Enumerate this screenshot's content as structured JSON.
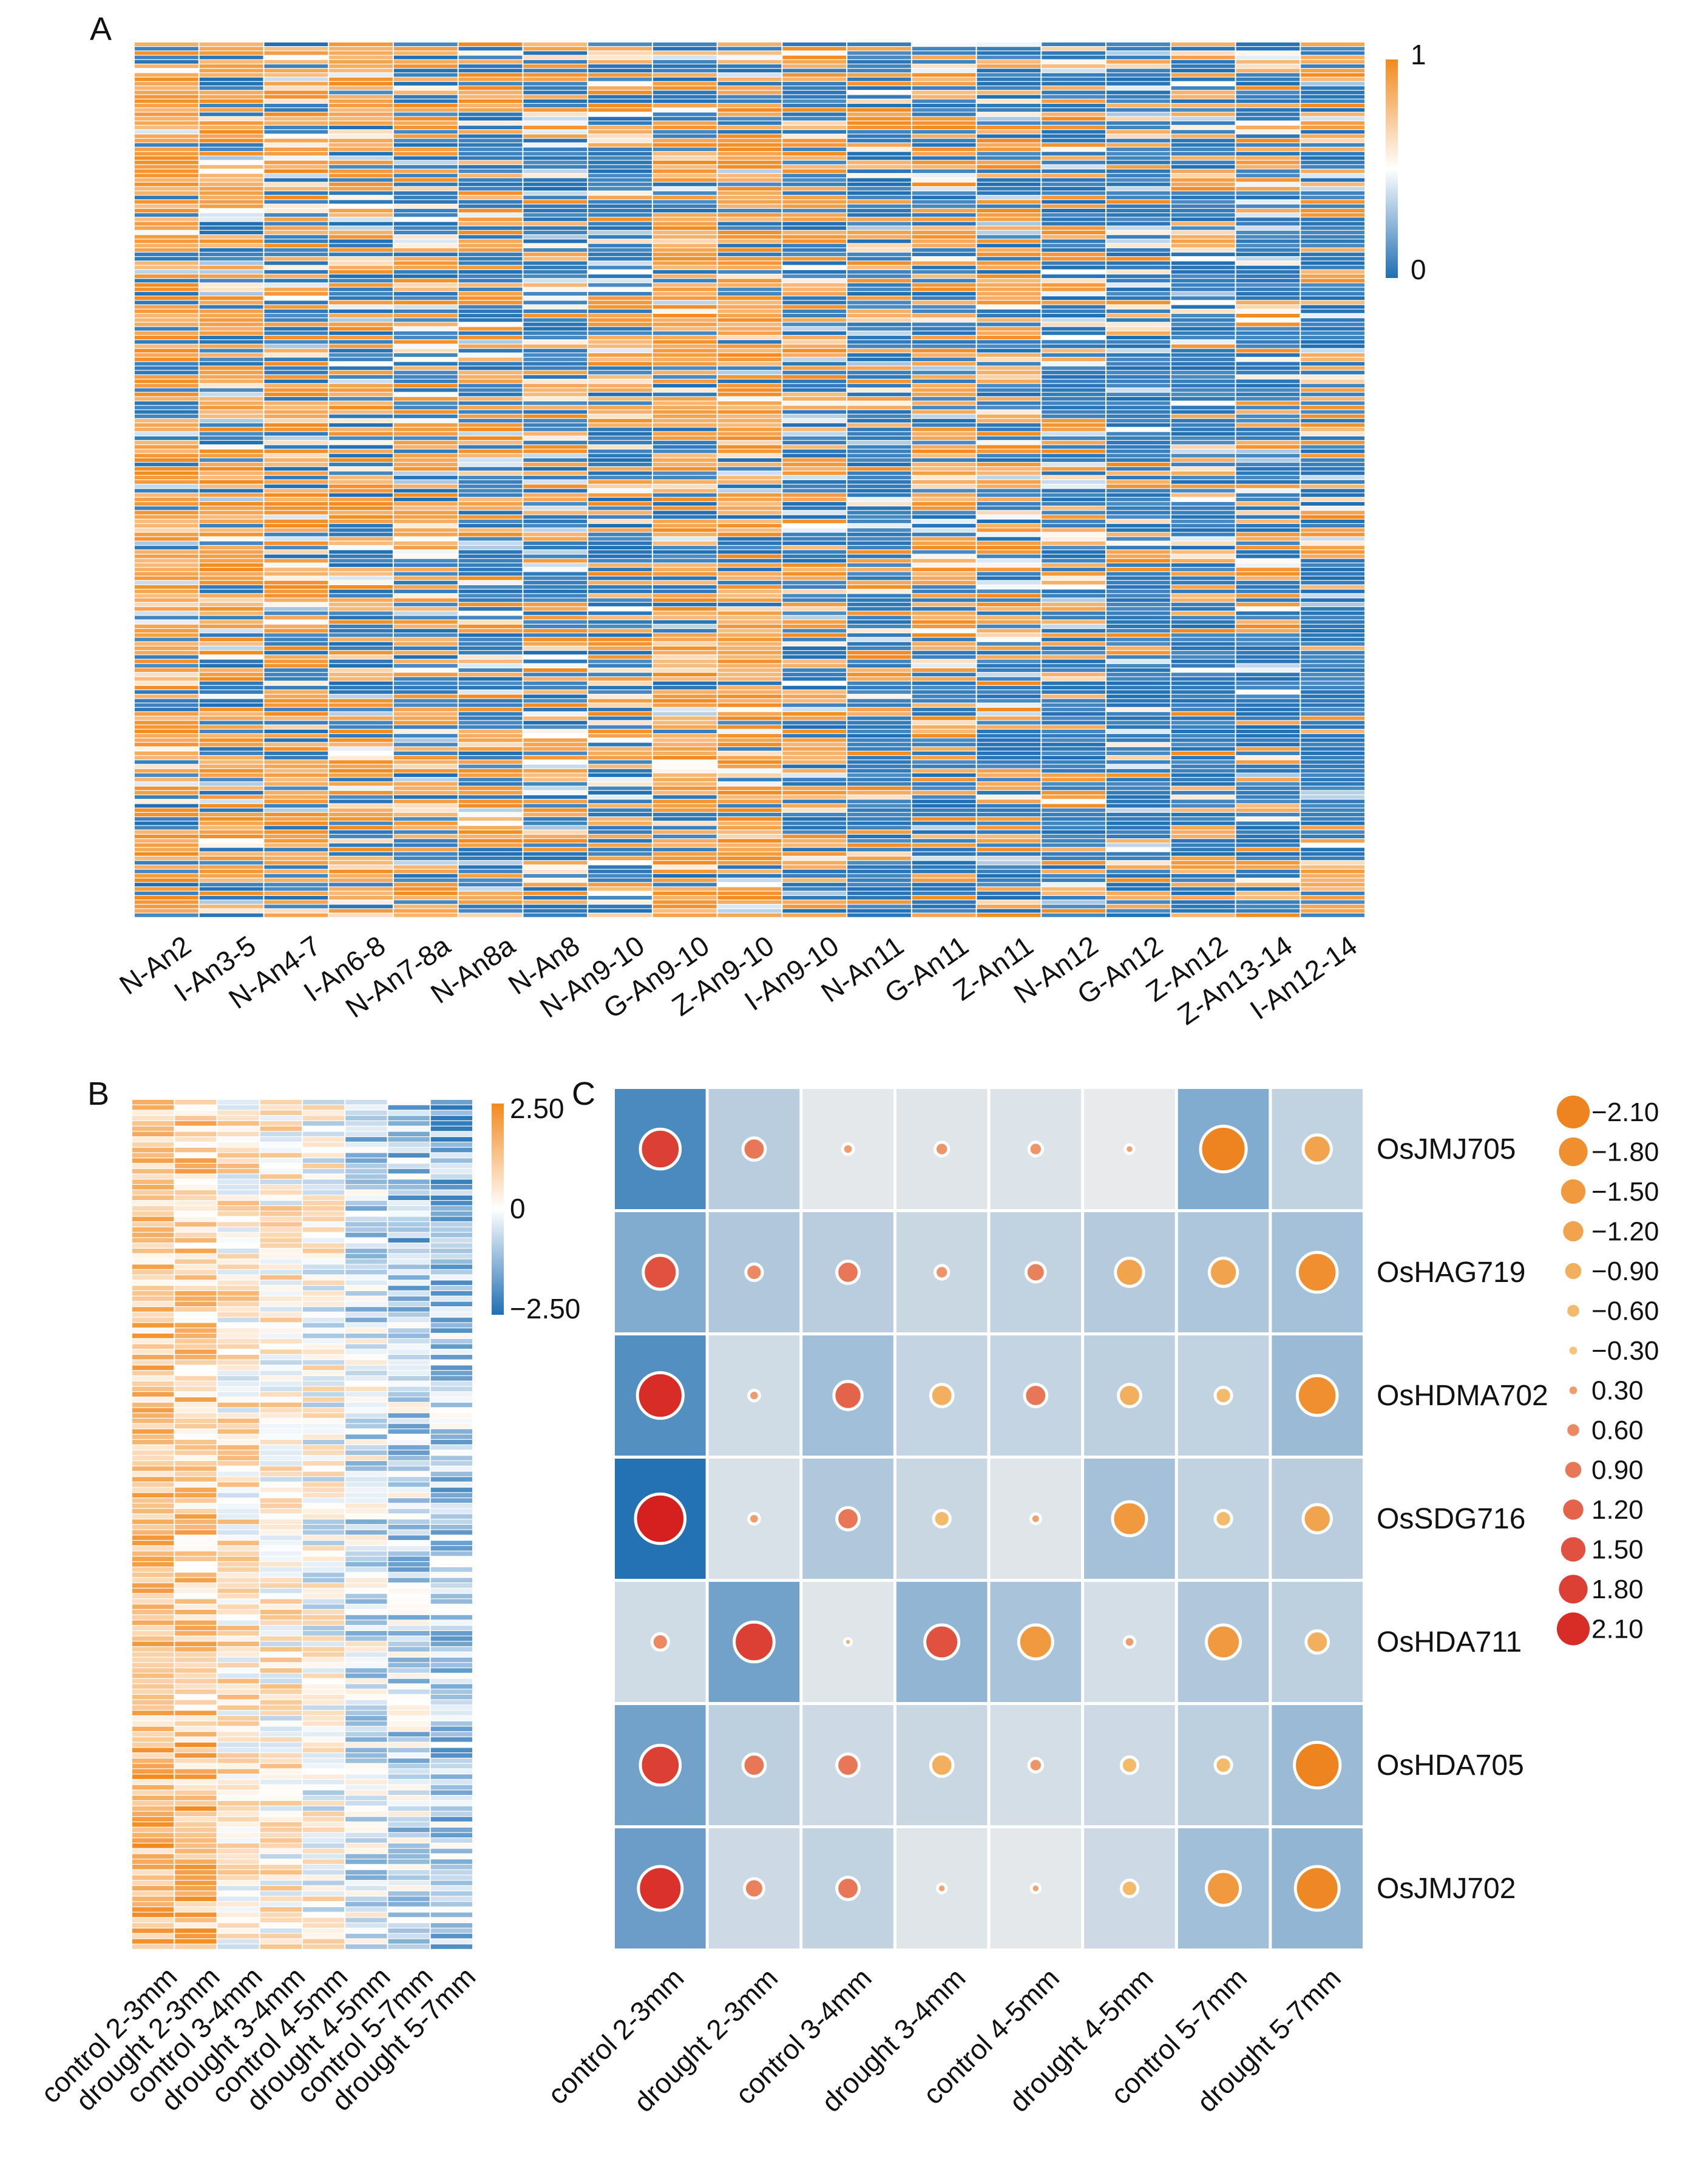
{
  "chart_data": [
    {
      "panel": "A",
      "type": "heatmap",
      "title": "",
      "columns": [
        "N-An2",
        "I-An3-5",
        "N-An4-7",
        "I-An6-8",
        "N-An7-8a",
        "N-An8a",
        "N-An8",
        "N-An9-10",
        "G-An9-10",
        "Z-An9-10",
        "I-An9-10",
        "N-An11",
        "G-An11",
        "Z-An11",
        "N-An12",
        "G-An12",
        "Z-An12",
        "Z-An13-14",
        "I-An12-14"
      ],
      "column_colors": [
        "#2e4a9a",
        "#e0533c",
        "#2e4a9a",
        "#e0533c",
        "#2e4a9a",
        "#2e4a9a",
        "#2e4a9a",
        "#2e4a9a",
        "#7ba7cf",
        "#f0a35a",
        "#e0533c",
        "#2e4a9a",
        "#7ba7cf",
        "#f0a35a",
        "#2e4a9a",
        "#7ba7cf",
        "#f0a35a",
        "#f0a35a",
        "#e0533c"
      ],
      "row_count": 200,
      "column_profile": [
        0.72,
        0.68,
        0.64,
        0.66,
        0.52,
        0.4,
        0.32,
        0.42,
        0.72,
        0.72,
        0.5,
        0.3,
        0.52,
        0.48,
        0.34,
        0.18,
        0.24,
        0.26,
        0.3
      ],
      "colorbar": {
        "min": 0,
        "max": 1,
        "tick_labels": [
          "1",
          "0"
        ],
        "low_color": "#1f6fb4",
        "mid_color": "#ffffff",
        "high_color": "#f28a1e"
      }
    },
    {
      "panel": "B",
      "type": "heatmap",
      "title": "",
      "columns": [
        "control 2-3mm",
        "drought 2-3mm",
        "control 3-4mm",
        "drought 3-4mm",
        "control 4-5mm",
        "drought 4-5mm",
        "control 5-7mm",
        "drought 5-7mm"
      ],
      "row_count": 160,
      "column_profile": [
        0.75,
        0.65,
        0.3,
        0.2,
        0.05,
        -0.25,
        -0.4,
        -0.55
      ],
      "colorbar": {
        "min": -2.5,
        "max": 2.5,
        "tick_labels": [
          "2.50",
          "0",
          "−2.50"
        ],
        "low_color": "#1f6fb4",
        "mid_color": "#ffffff",
        "high_color": "#f28a1e"
      }
    },
    {
      "panel": "C",
      "type": "heatmap",
      "title": "",
      "columns": [
        "control 2-3mm",
        "drought 2-3mm",
        "control 3-4mm",
        "drought 3-4mm",
        "control 4-5mm",
        "drought 4-5mm",
        "control 5-7mm",
        "drought 5-7mm"
      ],
      "rows": [
        "OsJMJ705",
        "OsHAG719",
        "OsHDMA702",
        "OsSDG716",
        "OsHDA711",
        "OsHDA705",
        "OsJMJ702"
      ],
      "tile_values": [
        [
          -2.0,
          -0.6,
          -0.05,
          -0.1,
          -0.15,
          0.0,
          -1.3,
          -0.5
        ],
        [
          -1.3,
          -0.7,
          -0.6,
          -0.4,
          -0.5,
          -0.65,
          -0.75,
          -0.85
        ],
        [
          -1.9,
          -0.3,
          -0.9,
          -0.45,
          -0.45,
          -0.55,
          -0.5,
          -1.0
        ],
        [
          -2.5,
          -0.2,
          -0.7,
          -0.4,
          -0.1,
          -0.85,
          -0.5,
          -0.6
        ],
        [
          -0.3,
          -1.5,
          -0.1,
          -1.1,
          -0.8,
          -0.25,
          -0.7,
          -0.55
        ],
        [
          -1.5,
          -0.55,
          -0.35,
          -0.4,
          -0.25,
          -0.35,
          -0.55,
          -1.0
        ],
        [
          -1.6,
          -0.35,
          -0.5,
          -0.1,
          -0.05,
          -0.35,
          -0.9,
          -1.1
        ]
      ],
      "dot_values": [
        [
          1.8,
          0.9,
          0.3,
          0.45,
          0.45,
          0.2,
          -2.1,
          -1.2
        ],
        [
          1.5,
          0.6,
          0.9,
          0.45,
          0.75,
          -1.2,
          -1.2,
          -1.8
        ],
        [
          2.1,
          0.3,
          1.2,
          -0.9,
          0.9,
          -0.9,
          -0.6,
          -1.8
        ],
        [
          2.3,
          0.3,
          0.9,
          -0.6,
          0.25,
          -1.5,
          -0.6,
          -1.2
        ],
        [
          0.6,
          1.8,
          0.1,
          1.5,
          -1.5,
          0.3,
          -1.5,
          -0.9
        ],
        [
          1.8,
          0.9,
          0.9,
          -0.9,
          0.45,
          -0.6,
          -0.6,
          -2.1
        ],
        [
          2.0,
          0.75,
          0.9,
          0.2,
          0.2,
          -0.6,
          -1.5,
          -2.0
        ]
      ],
      "tile_range": [
        -2.5,
        0
      ],
      "legend": {
        "labels": [
          "−2.10",
          "−1.80",
          "−1.50",
          "−1.20",
          "−0.90",
          "−0.60",
          "−0.30",
          "0.30",
          "0.60",
          "0.90",
          "1.20",
          "1.50",
          "1.80",
          "2.10"
        ],
        "values": [
          -2.1,
          -1.8,
          -1.5,
          -1.2,
          -0.9,
          -0.6,
          -0.3,
          0.3,
          0.6,
          0.9,
          1.2,
          1.5,
          1.8,
          2.1
        ]
      }
    }
  ]
}
